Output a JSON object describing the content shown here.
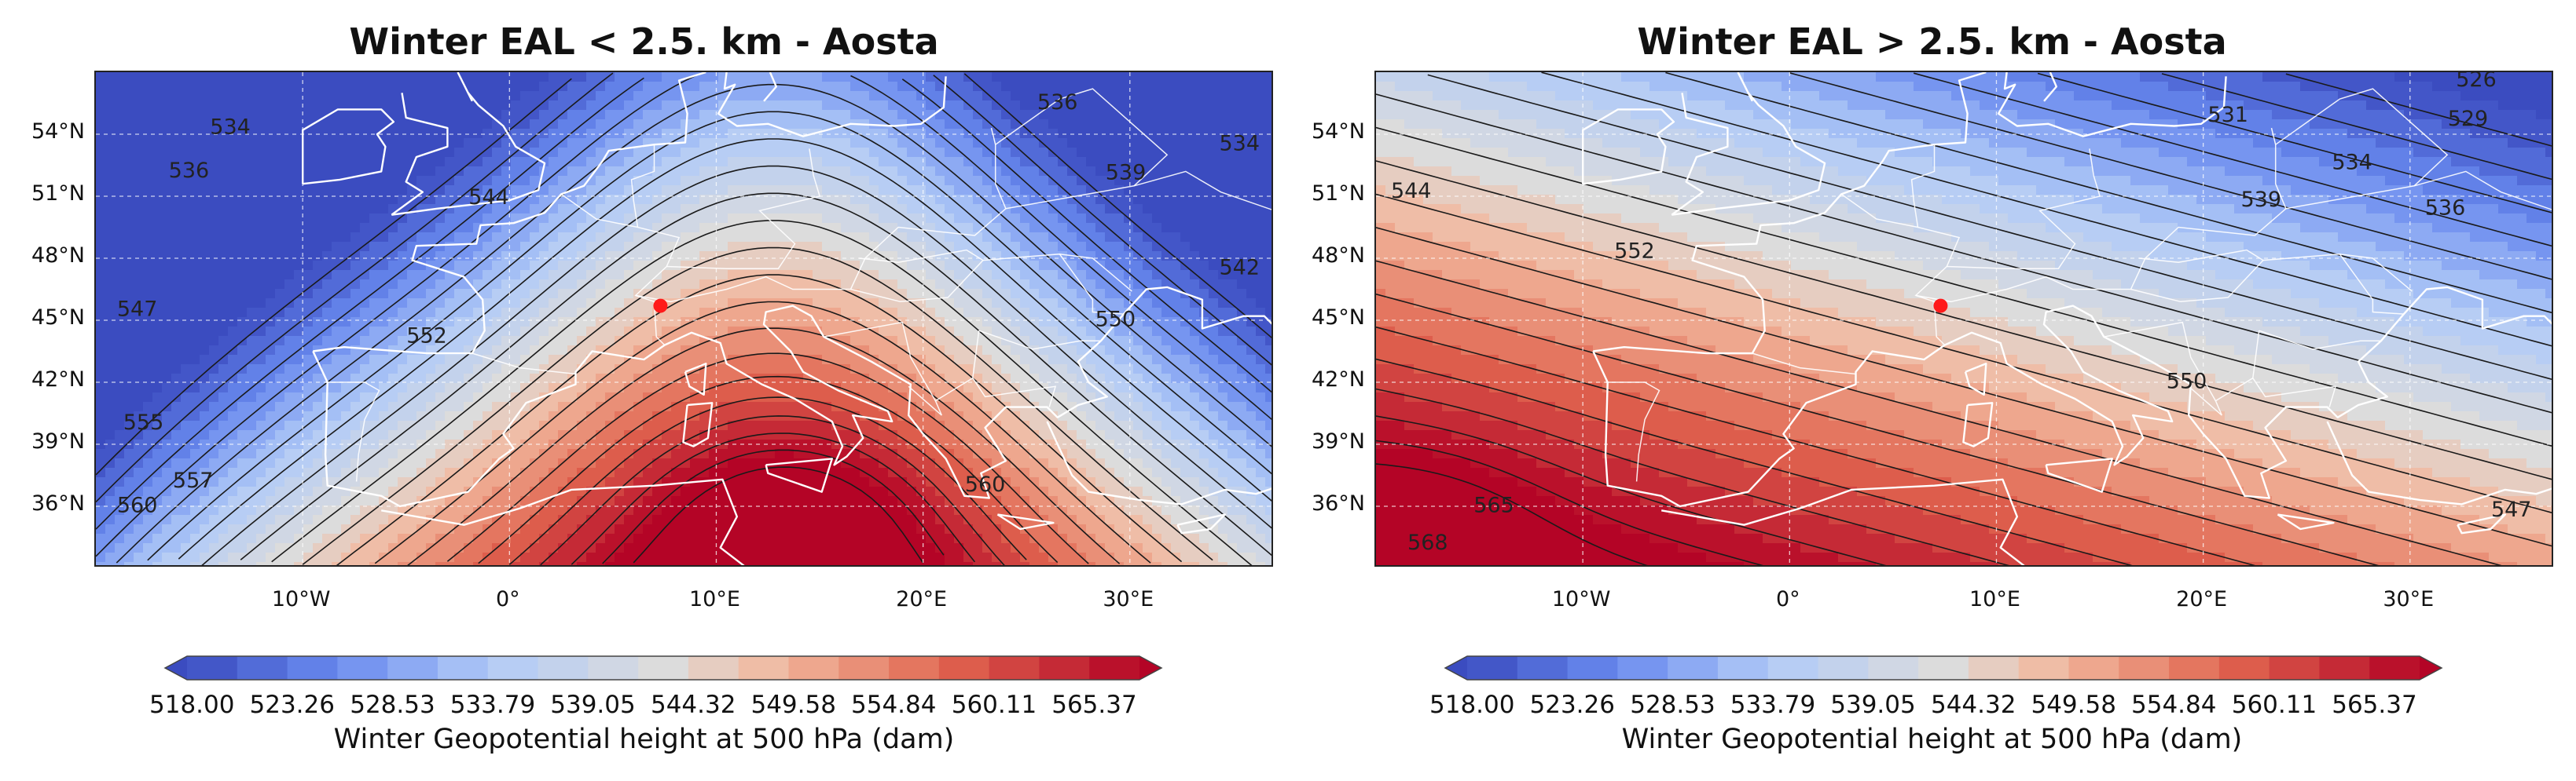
{
  "panels": [
    {
      "title": "Winter EAL < 2.5. km - Aosta",
      "colorbar_label": "Winter Geopotential height at 500 hPa (dam)"
    },
    {
      "title": "Winter EAL > 2.5. km - Aosta",
      "colorbar_label": "Winter Geopotential height at 500 hPa (dam)"
    }
  ],
  "colors": {
    "low": "#3b4cc0",
    "mid": "#dddddd",
    "high": "#b40426",
    "marker": "#ff1a1a",
    "coastline": "#ffffff",
    "contour": "#1a1a1a"
  },
  "chart_data": [
    {
      "type": "heatmap",
      "title": "Winter EAL < 2.5. km - Aosta",
      "colorbar_label": "Winter Geopotential height at 500 hPa (dam)",
      "colorbar_ticks": [
        "518.00",
        "523.26",
        "528.53",
        "533.79",
        "539.05",
        "544.32",
        "549.58",
        "554.84",
        "560.11",
        "565.37"
      ],
      "colorbar_range": [
        518.0,
        568.0
      ],
      "lat_ticks": [
        "36°N",
        "39°N",
        "42°N",
        "45°N",
        "48°N",
        "51°N",
        "54°N"
      ],
      "lon_ticks": [
        "10°W",
        "0°",
        "10°E",
        "20°E",
        "30°E"
      ],
      "lat_range": [
        33.0,
        57.0
      ],
      "lon_range": [
        -20.0,
        37.0
      ],
      "grid": true,
      "marker": {
        "label": "Aosta",
        "lon": 7.3,
        "lat": 45.7
      },
      "contours": [
        {
          "value": 534,
          "label": "534",
          "label_pos": [
            -13.5,
            54.3
          ]
        },
        {
          "value": 536,
          "label": "536",
          "label_pos": [
            -15.5,
            52.2
          ]
        },
        {
          "value": 544,
          "label": "544",
          "label_pos": [
            -1.0,
            50.9
          ]
        },
        {
          "value": 547,
          "label": "547",
          "label_pos": [
            -18.0,
            45.5
          ]
        },
        {
          "value": 552,
          "label": "552",
          "label_pos": [
            -4.0,
            44.2
          ]
        },
        {
          "value": 555,
          "label": "555",
          "label_pos": [
            -17.7,
            40.0
          ]
        },
        {
          "value": 557,
          "label": "557",
          "label_pos": [
            -15.3,
            37.2
          ]
        },
        {
          "value": 560,
          "label": "560",
          "label_pos": [
            -18.0,
            36.0
          ]
        },
        {
          "value": 536,
          "label": "536",
          "label_pos": [
            26.5,
            55.5
          ]
        },
        {
          "value": 539,
          "label": "539",
          "label_pos": [
            29.8,
            52.1
          ]
        },
        {
          "value": 534,
          "label": "534",
          "label_pos": [
            35.3,
            53.5
          ]
        },
        {
          "value": 542,
          "label": "542",
          "label_pos": [
            35.3,
            47.5
          ]
        },
        {
          "value": 550,
          "label": "550",
          "label_pos": [
            29.3,
            45.0
          ]
        },
        {
          "value": 560,
          "label": "560",
          "label_pos": [
            23.0,
            37.0
          ]
        }
      ]
    },
    {
      "type": "heatmap",
      "title": "Winter EAL > 2.5. km - Aosta",
      "colorbar_label": "Winter Geopotential height at 500 hPa (dam)",
      "colorbar_ticks": [
        "518.00",
        "523.26",
        "528.53",
        "533.79",
        "539.05",
        "544.32",
        "549.58",
        "554.84",
        "560.11",
        "565.37"
      ],
      "colorbar_range": [
        518.0,
        568.0
      ],
      "lat_ticks": [
        "36°N",
        "39°N",
        "42°N",
        "45°N",
        "48°N",
        "51°N",
        "54°N"
      ],
      "lon_ticks": [
        "10°W",
        "0°",
        "10°E",
        "20°E",
        "30°E"
      ],
      "lat_range": [
        33.0,
        57.0
      ],
      "lon_range": [
        -20.0,
        37.0
      ],
      "grid": true,
      "marker": {
        "label": "Aosta",
        "lon": 7.3,
        "lat": 45.7
      },
      "contours": [
        {
          "value": 526,
          "label": "526",
          "label_pos": [
            33.2,
            56.6
          ]
        },
        {
          "value": 529,
          "label": "529",
          "label_pos": [
            32.8,
            54.7
          ]
        },
        {
          "value": 531,
          "label": "531",
          "label_pos": [
            21.2,
            54.9
          ]
        },
        {
          "value": 534,
          "label": "534",
          "label_pos": [
            27.2,
            52.6
          ]
        },
        {
          "value": 536,
          "label": "536",
          "label_pos": [
            31.7,
            50.4
          ]
        },
        {
          "value": 539,
          "label": "539",
          "label_pos": [
            22.8,
            50.8
          ]
        },
        {
          "value": 544,
          "label": "544",
          "label_pos": [
            -18.3,
            51.2
          ]
        },
        {
          "value": 552,
          "label": "552",
          "label_pos": [
            -7.5,
            48.3
          ]
        },
        {
          "value": 550,
          "label": "550",
          "label_pos": [
            19.2,
            42.0
          ]
        },
        {
          "value": 547,
          "label": "547",
          "label_pos": [
            34.9,
            35.8
          ]
        },
        {
          "value": 565,
          "label": "565",
          "label_pos": [
            -14.3,
            36.0
          ]
        },
        {
          "value": 568,
          "label": "568",
          "label_pos": [
            -17.5,
            34.2
          ]
        }
      ]
    }
  ]
}
